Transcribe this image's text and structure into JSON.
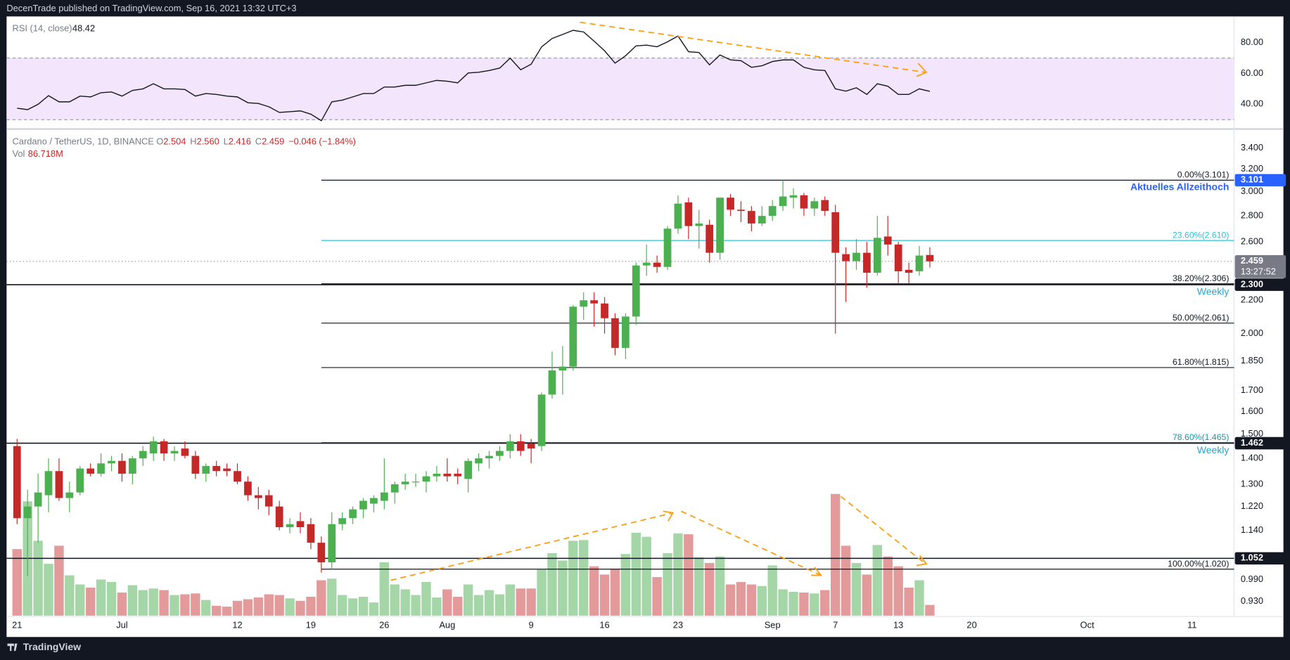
{
  "header": "DecenTrade published on TradingView.com, Sep 16, 2021 13:32 UTC+3",
  "footer": "TradingView",
  "chart_data": [
    {
      "type": "candlestick",
      "symbol": "Cardano / TetherUS, 1D, BINANCE",
      "legend": [
        {
          "key": "O",
          "value": "2.504"
        },
        {
          "key": "H",
          "value": "2.560"
        },
        {
          "key": "L",
          "value": "2.416"
        },
        {
          "key": "C",
          "value": "2.459"
        },
        {
          "value": "−0.046 (−1.84%)"
        }
      ],
      "volume_name": "Vol",
      "volume_value_label": "86.718M",
      "up_color": "#4caf50",
      "down_color": "#c62828",
      "volume_up_color": "#a5d6a7",
      "volume_down_color": "#e29a9a",
      "log": true,
      "ylim": [
        0.891,
        3.564
      ],
      "xlim": [
        "2021-06-20",
        "2021-10-15"
      ],
      "yticks": [
        {
          "value": 3.4,
          "label": "3.400"
        },
        {
          "value": 3.2,
          "label": "3.200"
        },
        {
          "value": 3.0,
          "label": "3.000"
        },
        {
          "value": 2.8,
          "label": "2.800"
        },
        {
          "value": 2.6,
          "label": "2.600"
        },
        {
          "value": 2.2,
          "label": "2.200"
        },
        {
          "value": 2.0,
          "label": "2.000"
        },
        {
          "value": 1.85,
          "label": "1.850"
        },
        {
          "value": 1.7,
          "label": "1.700"
        },
        {
          "value": 1.6,
          "label": "1.600"
        },
        {
          "value": 1.5,
          "label": "1.500"
        },
        {
          "value": 1.4,
          "label": "1.400"
        },
        {
          "value": 1.3,
          "label": "1.300"
        },
        {
          "value": 1.22,
          "label": "1.220"
        },
        {
          "value": 1.14,
          "label": "1.140"
        },
        {
          "value": 0.99,
          "label": "0.990"
        },
        {
          "value": 0.93,
          "label": "0.930"
        }
      ],
      "xticks": [
        {
          "value": "2021-06-21",
          "label": "21"
        },
        {
          "value": "2021-07-01",
          "label": "Jul"
        },
        {
          "value": "2021-07-12",
          "label": "12"
        },
        {
          "value": "2021-07-19",
          "label": "19"
        },
        {
          "value": "2021-07-26",
          "label": "26"
        },
        {
          "value": "2021-08-01",
          "label": "Aug"
        },
        {
          "value": "2021-08-09",
          "label": "9"
        },
        {
          "value": "2021-08-16",
          "label": "16"
        },
        {
          "value": "2021-08-23",
          "label": "23"
        },
        {
          "value": "2021-09-01",
          "label": "Sep"
        },
        {
          "value": "2021-09-07",
          "label": "7"
        },
        {
          "value": "2021-09-13",
          "label": "13"
        },
        {
          "value": "2021-09-20",
          "label": "20"
        },
        {
          "value": "2021-10-01",
          "label": "Oct"
        },
        {
          "value": "2021-10-11",
          "label": "11"
        }
      ],
      "x": [
        "2021-06-21",
        "2021-06-22",
        "2021-06-23",
        "2021-06-24",
        "2021-06-25",
        "2021-06-26",
        "2021-06-27",
        "2021-06-28",
        "2021-06-29",
        "2021-06-30",
        "2021-07-01",
        "2021-07-02",
        "2021-07-03",
        "2021-07-04",
        "2021-07-05",
        "2021-07-06",
        "2021-07-07",
        "2021-07-08",
        "2021-07-09",
        "2021-07-10",
        "2021-07-11",
        "2021-07-12",
        "2021-07-13",
        "2021-07-14",
        "2021-07-15",
        "2021-07-16",
        "2021-07-17",
        "2021-07-18",
        "2021-07-19",
        "2021-07-20",
        "2021-07-21",
        "2021-07-22",
        "2021-07-23",
        "2021-07-24",
        "2021-07-25",
        "2021-07-26",
        "2021-07-27",
        "2021-07-28",
        "2021-07-29",
        "2021-07-30",
        "2021-07-31",
        "2021-08-01",
        "2021-08-02",
        "2021-08-03",
        "2021-08-04",
        "2021-08-05",
        "2021-08-06",
        "2021-08-07",
        "2021-08-08",
        "2021-08-09",
        "2021-08-10",
        "2021-08-11",
        "2021-08-12",
        "2021-08-13",
        "2021-08-14",
        "2021-08-15",
        "2021-08-16",
        "2021-08-17",
        "2021-08-18",
        "2021-08-19",
        "2021-08-20",
        "2021-08-21",
        "2021-08-22",
        "2021-08-23",
        "2021-08-24",
        "2021-08-25",
        "2021-08-26",
        "2021-08-27",
        "2021-08-28",
        "2021-08-29",
        "2021-08-30",
        "2021-08-31",
        "2021-09-01",
        "2021-09-02",
        "2021-09-03",
        "2021-09-04",
        "2021-09-05",
        "2021-09-06",
        "2021-09-07",
        "2021-09-08",
        "2021-09-09",
        "2021-09-10",
        "2021-09-11",
        "2021-09-12",
        "2021-09-13",
        "2021-09-14",
        "2021-09-15",
        "2021-09-16"
      ],
      "open": [
        1.45,
        1.18,
        1.22,
        1.26,
        1.35,
        1.25,
        1.27,
        1.36,
        1.34,
        1.38,
        1.39,
        1.34,
        1.4,
        1.42,
        1.47,
        1.42,
        1.44,
        1.41,
        1.34,
        1.37,
        1.36,
        1.35,
        1.31,
        1.26,
        1.26,
        1.22,
        1.15,
        1.17,
        1.16,
        1.1,
        1.04,
        1.16,
        1.18,
        1.21,
        1.23,
        1.24,
        1.27,
        1.3,
        1.31,
        1.31,
        1.33,
        1.34,
        1.34,
        1.32,
        1.38,
        1.4,
        1.41,
        1.43,
        1.47,
        1.46,
        1.45,
        1.68,
        1.8,
        1.82,
        2.16,
        2.2,
        2.18,
        2.09,
        1.92,
        2.1,
        2.43,
        2.45,
        2.42,
        2.7,
        2.91,
        2.72,
        2.73,
        2.52,
        2.95,
        2.85,
        2.84,
        2.74,
        2.8,
        2.88,
        2.95,
        2.97,
        2.86,
        2.93,
        2.83,
        2.51,
        2.46,
        2.52,
        2.38,
        2.64,
        2.58,
        2.4,
        2.39,
        2.504
      ],
      "high": [
        1.48,
        1.28,
        1.34,
        1.4,
        1.4,
        1.31,
        1.37,
        1.38,
        1.42,
        1.41,
        1.42,
        1.41,
        1.45,
        1.49,
        1.48,
        1.45,
        1.47,
        1.43,
        1.38,
        1.39,
        1.38,
        1.38,
        1.33,
        1.29,
        1.28,
        1.24,
        1.18,
        1.2,
        1.18,
        1.12,
        1.2,
        1.2,
        1.22,
        1.25,
        1.26,
        1.4,
        1.31,
        1.34,
        1.34,
        1.35,
        1.37,
        1.4,
        1.36,
        1.4,
        1.42,
        1.43,
        1.45,
        1.5,
        1.5,
        1.48,
        1.69,
        1.9,
        1.93,
        2.17,
        2.25,
        2.25,
        2.22,
        2.12,
        2.12,
        2.45,
        2.58,
        2.5,
        2.72,
        2.97,
        2.95,
        2.85,
        2.77,
        2.95,
        2.98,
        2.92,
        2.88,
        2.88,
        2.93,
        3.1,
        3.03,
        2.99,
        2.95,
        2.96,
        2.89,
        2.56,
        2.62,
        2.6,
        2.8,
        2.8,
        2.6,
        2.45,
        2.57,
        2.56
      ],
      "low": [
        1.16,
        1.0,
        1.1,
        1.2,
        1.24,
        1.2,
        1.26,
        1.33,
        1.33,
        1.35,
        1.31,
        1.3,
        1.37,
        1.39,
        1.39,
        1.39,
        1.4,
        1.32,
        1.31,
        1.33,
        1.33,
        1.3,
        1.24,
        1.21,
        1.19,
        1.14,
        1.13,
        1.13,
        1.08,
        1.01,
        1.02,
        1.14,
        1.16,
        1.18,
        1.2,
        1.21,
        1.23,
        1.28,
        1.29,
        1.27,
        1.31,
        1.31,
        1.3,
        1.27,
        1.35,
        1.36,
        1.39,
        1.4,
        1.41,
        1.38,
        1.43,
        1.66,
        1.68,
        1.8,
        2.08,
        2.04,
        2.0,
        1.88,
        1.86,
        2.05,
        2.36,
        2.38,
        2.4,
        2.66,
        2.62,
        2.55,
        2.45,
        2.47,
        2.8,
        2.75,
        2.68,
        2.72,
        2.76,
        2.84,
        2.86,
        2.8,
        2.8,
        2.8,
        2.0,
        2.19,
        2.4,
        2.28,
        2.36,
        2.5,
        2.31,
        2.31,
        2.36,
        2.416
      ],
      "close": [
        1.18,
        1.22,
        1.27,
        1.35,
        1.25,
        1.27,
        1.36,
        1.34,
        1.38,
        1.39,
        1.34,
        1.4,
        1.43,
        1.47,
        1.42,
        1.43,
        1.41,
        1.34,
        1.37,
        1.35,
        1.35,
        1.31,
        1.26,
        1.25,
        1.22,
        1.15,
        1.16,
        1.15,
        1.1,
        1.04,
        1.16,
        1.18,
        1.21,
        1.24,
        1.25,
        1.27,
        1.3,
        1.31,
        1.31,
        1.33,
        1.34,
        1.33,
        1.33,
        1.39,
        1.4,
        1.41,
        1.43,
        1.47,
        1.43,
        1.44,
        1.68,
        1.8,
        1.82,
        2.16,
        2.2,
        2.18,
        2.09,
        1.92,
        2.1,
        2.43,
        2.45,
        2.42,
        2.7,
        2.9,
        2.72,
        2.74,
        2.52,
        2.95,
        2.85,
        2.84,
        2.74,
        2.8,
        2.88,
        2.96,
        2.97,
        2.86,
        2.92,
        2.84,
        2.52,
        2.46,
        2.52,
        2.38,
        2.63,
        2.58,
        2.39,
        2.38,
        2.5,
        2.459
      ],
      "volume": [
        540,
        927,
        607,
        420,
        567,
        327,
        253,
        227,
        293,
        273,
        187,
        247,
        207,
        220,
        207,
        167,
        173,
        180,
        127,
        80,
        73,
        120,
        133,
        147,
        173,
        167,
        140,
        120,
        153,
        287,
        300,
        167,
        140,
        153,
        107,
        433,
        253,
        213,
        167,
        273,
        147,
        213,
        153,
        253,
        167,
        207,
        173,
        253,
        220,
        220,
        373,
        507,
        447,
        607,
        613,
        400,
        333,
        380,
        500,
        673,
        640,
        313,
        507,
        667,
        660,
        473,
        427,
        480,
        253,
        273,
        253,
        240,
        407,
        213,
        193,
        187,
        180,
        207,
        987,
        567,
        427,
        333,
        573,
        480,
        400,
        227,
        287,
        86.718
      ],
      "fib": {
        "start": "2021-07-20",
        "levels": [
          {
            "value": 3.101,
            "label": "0.00%(3.101)",
            "color": "#131722"
          },
          {
            "value": 2.61,
            "label": "23.60%(2.610)",
            "color": "#26c6da"
          },
          {
            "value": 2.306,
            "label": "38.20%(2.306)",
            "color": "#131722"
          },
          {
            "value": 2.061,
            "label": "50.00%(2.061)",
            "color": "#131722"
          },
          {
            "value": 1.815,
            "label": "61.80%(1.815)",
            "color": "#131722"
          },
          {
            "value": 1.465,
            "label": "78.60%(1.465)",
            "color": "#139aa8"
          },
          {
            "value": 1.02,
            "label": "100.00%(1.020)",
            "color": "#131722"
          }
        ]
      },
      "levels": [
        {
          "value": 3.101,
          "label": "3.101",
          "color": "#2962ff",
          "note": "Aktuelles Allzeithoch",
          "note_color": "#2962ff"
        },
        {
          "value": 2.459,
          "label": "2.459",
          "sub": "13:27:52",
          "color": "#787b86",
          "line": "dotted"
        },
        {
          "value": 2.3,
          "label": "2.300",
          "color": "#131722",
          "note": "Weekly",
          "note_color": "#26a6d1",
          "line": "solid"
        },
        {
          "value": 1.462,
          "label": "1.462",
          "color": "#131722",
          "note": "Weekly",
          "note_color": "#26a6d1",
          "line": "solid"
        },
        {
          "value": 1.052,
          "label": "1.052",
          "color": "#131722",
          "line": "solid"
        }
      ]
    },
    {
      "type": "line",
      "name": "RSI (14, close)",
      "color": "#131722",
      "band": [
        30,
        70
      ],
      "band_color": "#f3e5fc",
      "ylim": [
        25,
        97
      ],
      "yticks": [
        {
          "value": 80,
          "label": "80.00"
        },
        {
          "value": 60,
          "label": "60.00"
        },
        {
          "value": 40,
          "label": "40.00"
        }
      ],
      "values": [
        37.5,
        36.5,
        40,
        45.6,
        41.6,
        41.6,
        45.3,
        44.8,
        47.5,
        48,
        45.3,
        49,
        50,
        53.3,
        50,
        50,
        49.6,
        45.3,
        47,
        46.4,
        45.3,
        44.8,
        41,
        40.5,
        38.4,
        34.7,
        35.2,
        35.7,
        33.6,
        29.3,
        41.6,
        42.7,
        44.8,
        47,
        47,
        51.2,
        51.2,
        52.3,
        52.3,
        53.9,
        55.5,
        55,
        53.9,
        60.3,
        60.8,
        61.9,
        63.5,
        69.9,
        62.4,
        66,
        77.3,
        82.7,
        85.3,
        88,
        86.9,
        81,
        74.7,
        66.7,
        71.5,
        77.9,
        78.4,
        77.3,
        80.5,
        84.3,
        74.1,
        73.6,
        65.6,
        72,
        68.8,
        68.3,
        64,
        65,
        67.7,
        68.8,
        68.8,
        64,
        62.4,
        61.9,
        50,
        48.5,
        50.7,
        46.4,
        53.3,
        51.7,
        46.4,
        46.4,
        50,
        48.42
      ]
    }
  ]
}
